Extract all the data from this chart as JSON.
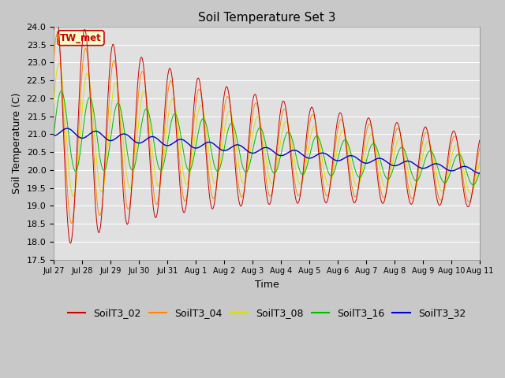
{
  "title": "Soil Temperature Set 3",
  "ylabel": "Soil Temperature (C)",
  "xlabel": "Time",
  "ylim": [
    17.5,
    24.0
  ],
  "yticks": [
    17.5,
    18.0,
    18.5,
    19.0,
    19.5,
    20.0,
    20.5,
    21.0,
    21.5,
    22.0,
    22.5,
    23.0,
    23.5,
    24.0
  ],
  "fig_bg_color": "#c8c8c8",
  "plot_bg_color": "#e0e0e0",
  "grid_color": "#f0f0f0",
  "series_colors": {
    "SoilT3_02": "#cc0000",
    "SoilT3_04": "#ff8800",
    "SoilT3_08": "#dddd00",
    "SoilT3_16": "#00bb00",
    "SoilT3_32": "#0000cc"
  },
  "annotation_text": "TW_met",
  "annotation_bg": "#ffffcc",
  "annotation_border": "#cc0000",
  "n_days": 15,
  "points_per_day": 144,
  "title_fontsize": 11,
  "axis_label_fontsize": 9,
  "tick_fontsize": 8,
  "legend_fontsize": 9
}
